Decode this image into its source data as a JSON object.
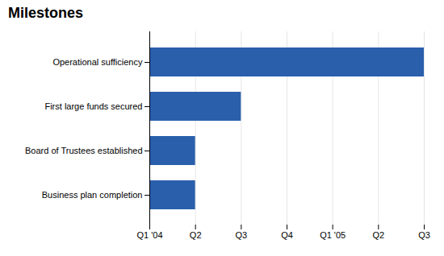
{
  "chart_data": {
    "type": "bar",
    "title": "Milestones",
    "categories": [
      "Business plan completion",
      "Board of Trustees established",
      "First large funds secured",
      "Operational sufficiency"
    ],
    "values": [
      1.0,
      1.0,
      2.0,
      6.0
    ],
    "color": "#2A5FAC",
    "orientation": "horizontal",
    "xlim": [
      0,
      6
    ],
    "xticks": [
      {
        "value": 0,
        "label": "Q1 '04"
      },
      {
        "value": 1,
        "label": "Q2"
      },
      {
        "value": 2,
        "label": "Q3"
      },
      {
        "value": 3,
        "label": "Q4"
      },
      {
        "value": 4,
        "label": "Q1 '05"
      },
      {
        "value": 5,
        "label": "Q2"
      },
      {
        "value": 6,
        "label": "Q3"
      }
    ],
    "grid": true
  }
}
